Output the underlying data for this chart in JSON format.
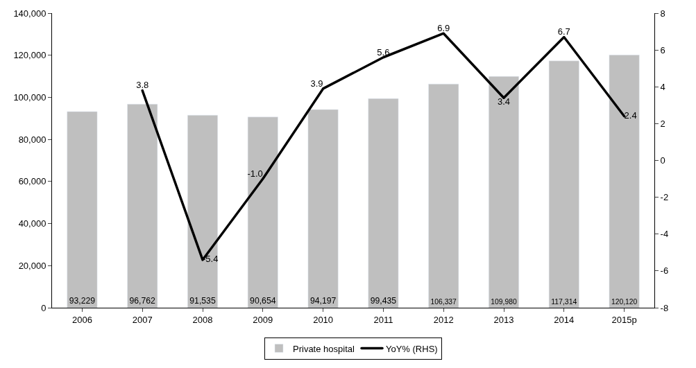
{
  "chart_data": {
    "type": "bar",
    "categories": [
      "2006",
      "2007",
      "2008",
      "2009",
      "2010",
      "2011",
      "2012",
      "2013",
      "2014",
      "2015p"
    ],
    "series": [
      {
        "name": "Private hospital",
        "color": "#bfbfbf",
        "values": [
          93229,
          96762,
          91535,
          90654,
          94197,
          99435,
          106337,
          109980,
          117314,
          120120
        ],
        "value_labels": [
          "93,229",
          "96,762",
          "91,535",
          "90,654",
          "94,197",
          "99,435",
          "106,337",
          "109,980",
          "117,314",
          "120,120"
        ]
      },
      {
        "name": "YoY% (RHS)",
        "type": "line",
        "axis": "y2",
        "color": "#000000",
        "values": [
          null,
          3.8,
          -5.4,
          -1.0,
          3.9,
          5.6,
          6.9,
          3.4,
          6.7,
          2.4
        ],
        "value_labels": [
          null,
          "3.8",
          "-5.4",
          "-1.0",
          "3.9",
          "5.6",
          "6.9",
          "3.4",
          "6.7",
          "2.4"
        ]
      }
    ],
    "ylim": [
      0,
      140000
    ],
    "yticks": [
      {
        "value": 0,
        "label": "0"
      },
      {
        "value": 20000,
        "label": "20,000"
      },
      {
        "value": 40000,
        "label": "40,000"
      },
      {
        "value": 60000,
        "label": "60,000"
      },
      {
        "value": 80000,
        "label": "80,000"
      },
      {
        "value": 100000,
        "label": "100,000"
      },
      {
        "value": 120000,
        "label": "120,000"
      },
      {
        "value": 140000,
        "label": "140,000"
      }
    ],
    "y2lim": [
      -8,
      8
    ],
    "y2ticks": [
      -8,
      -6,
      -4,
      -2,
      0,
      2,
      4,
      6,
      8
    ],
    "grid": false,
    "legend": "bottom",
    "marker": "none",
    "line_style": "solid"
  }
}
